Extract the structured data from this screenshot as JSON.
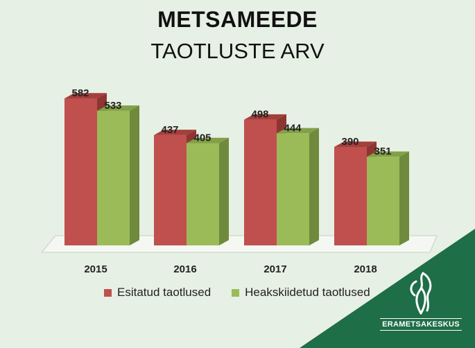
{
  "header": {
    "title": "METSAMEEDE",
    "subtitle": "TAOTLUSTE ARV"
  },
  "chart_data": {
    "type": "bar",
    "categories": [
      "2015",
      "2016",
      "2017",
      "2018"
    ],
    "series": [
      {
        "name": "Esitatud taotlused",
        "values": [
          582,
          437,
          498,
          390
        ],
        "color": "#c0504d"
      },
      {
        "name": "Heakskiidetud taotlused",
        "values": [
          533,
          405,
          444,
          351
        ],
        "color": "#9bbb59"
      }
    ],
    "ylim": [
      0,
      582
    ],
    "grid": false,
    "legend": "bottom",
    "data_labels": true
  },
  "brand": {
    "name": "ERAMETSAKESKUS",
    "accent": "#1e6e48"
  }
}
